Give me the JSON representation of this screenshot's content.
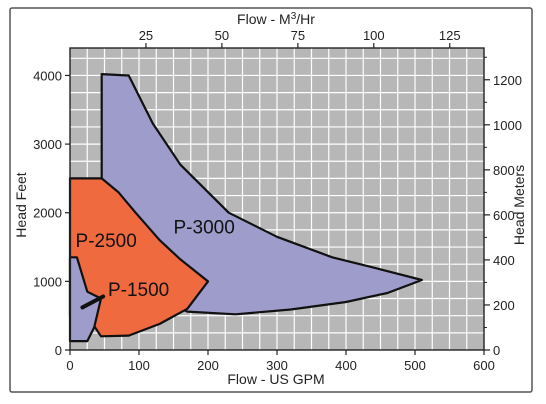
{
  "chart_data": {
    "type": "area",
    "title": "",
    "xlabel": "Flow - US GPM",
    "ylabel": "Head Feet",
    "x2label_prefix": "Flow - M",
    "x2label_sup": "3",
    "x2label_suffix": "/Hr",
    "y2label": "Head Meters",
    "xlim": [
      0,
      600
    ],
    "ylim": [
      0,
      4400
    ],
    "x_ticks": [
      0,
      100,
      200,
      300,
      400,
      500,
      600
    ],
    "x_tick_labels": [
      "0",
      "100",
      "200",
      "300",
      "400",
      "500",
      "600"
    ],
    "y_ticks": [
      0,
      1000,
      2000,
      3000,
      4000
    ],
    "y_tick_labels": [
      "0",
      "1000",
      "2000",
      "3000",
      "4000"
    ],
    "x2_ticks_m3hr": [
      25,
      50,
      75,
      100,
      125
    ],
    "x2_tick_labels": [
      "25",
      "50",
      "75",
      "100",
      "125"
    ],
    "y2_ticks_m": [
      0,
      200,
      400,
      600,
      800,
      1000,
      1200
    ],
    "y2_tick_labels": [
      "0",
      "200",
      "400",
      "600",
      "800",
      "1000",
      "1200"
    ],
    "grid": true,
    "series": [
      {
        "name": "P-3000",
        "color": "#9d9cca",
        "points": [
          [
            46,
            4020
          ],
          [
            85,
            4000
          ],
          [
            120,
            3300
          ],
          [
            160,
            2700
          ],
          [
            230,
            2000
          ],
          [
            300,
            1650
          ],
          [
            380,
            1350
          ],
          [
            440,
            1200
          ],
          [
            510,
            1020
          ],
          [
            460,
            830
          ],
          [
            400,
            700
          ],
          [
            320,
            590
          ],
          [
            240,
            520
          ],
          [
            170,
            560
          ],
          [
            140,
            700
          ],
          [
            120,
            850
          ],
          [
            60,
            560
          ],
          [
            46,
            560
          ]
        ]
      },
      {
        "name": "P-2500",
        "color": "#f06a40",
        "points": [
          [
            0,
            2500
          ],
          [
            46,
            2500
          ],
          [
            70,
            2300
          ],
          [
            95,
            2000
          ],
          [
            130,
            1600
          ],
          [
            160,
            1320
          ],
          [
            200,
            1000
          ],
          [
            170,
            600
          ],
          [
            130,
            380
          ],
          [
            85,
            210
          ],
          [
            45,
            200
          ],
          [
            25,
            500
          ],
          [
            0,
            500
          ]
        ]
      },
      {
        "name": "P-1500",
        "color": "#9d9cca",
        "points": [
          [
            0,
            1350
          ],
          [
            10,
            1350
          ],
          [
            25,
            850
          ],
          [
            45,
            750
          ],
          [
            35,
            330
          ],
          [
            25,
            130
          ],
          [
            0,
            130
          ]
        ]
      }
    ],
    "markers": [
      {
        "name": "P-1500-bar",
        "points": [
          [
            18,
            620
          ],
          [
            48,
            780
          ]
        ]
      }
    ],
    "region_labels": [
      {
        "text": "P-3000",
        "x": 150,
        "y": 1700
      },
      {
        "text": "P-2500",
        "x": 8,
        "y": 1500
      },
      {
        "text": "P-1500",
        "x": 55,
        "y": 790
      }
    ],
    "styles": {
      "p3000_fill": "#9d9cca",
      "p2500_fill": "#f06a40",
      "outline": "#111111",
      "grid_color": "#ffffff",
      "plot_bg": "#b7b7b7"
    }
  }
}
